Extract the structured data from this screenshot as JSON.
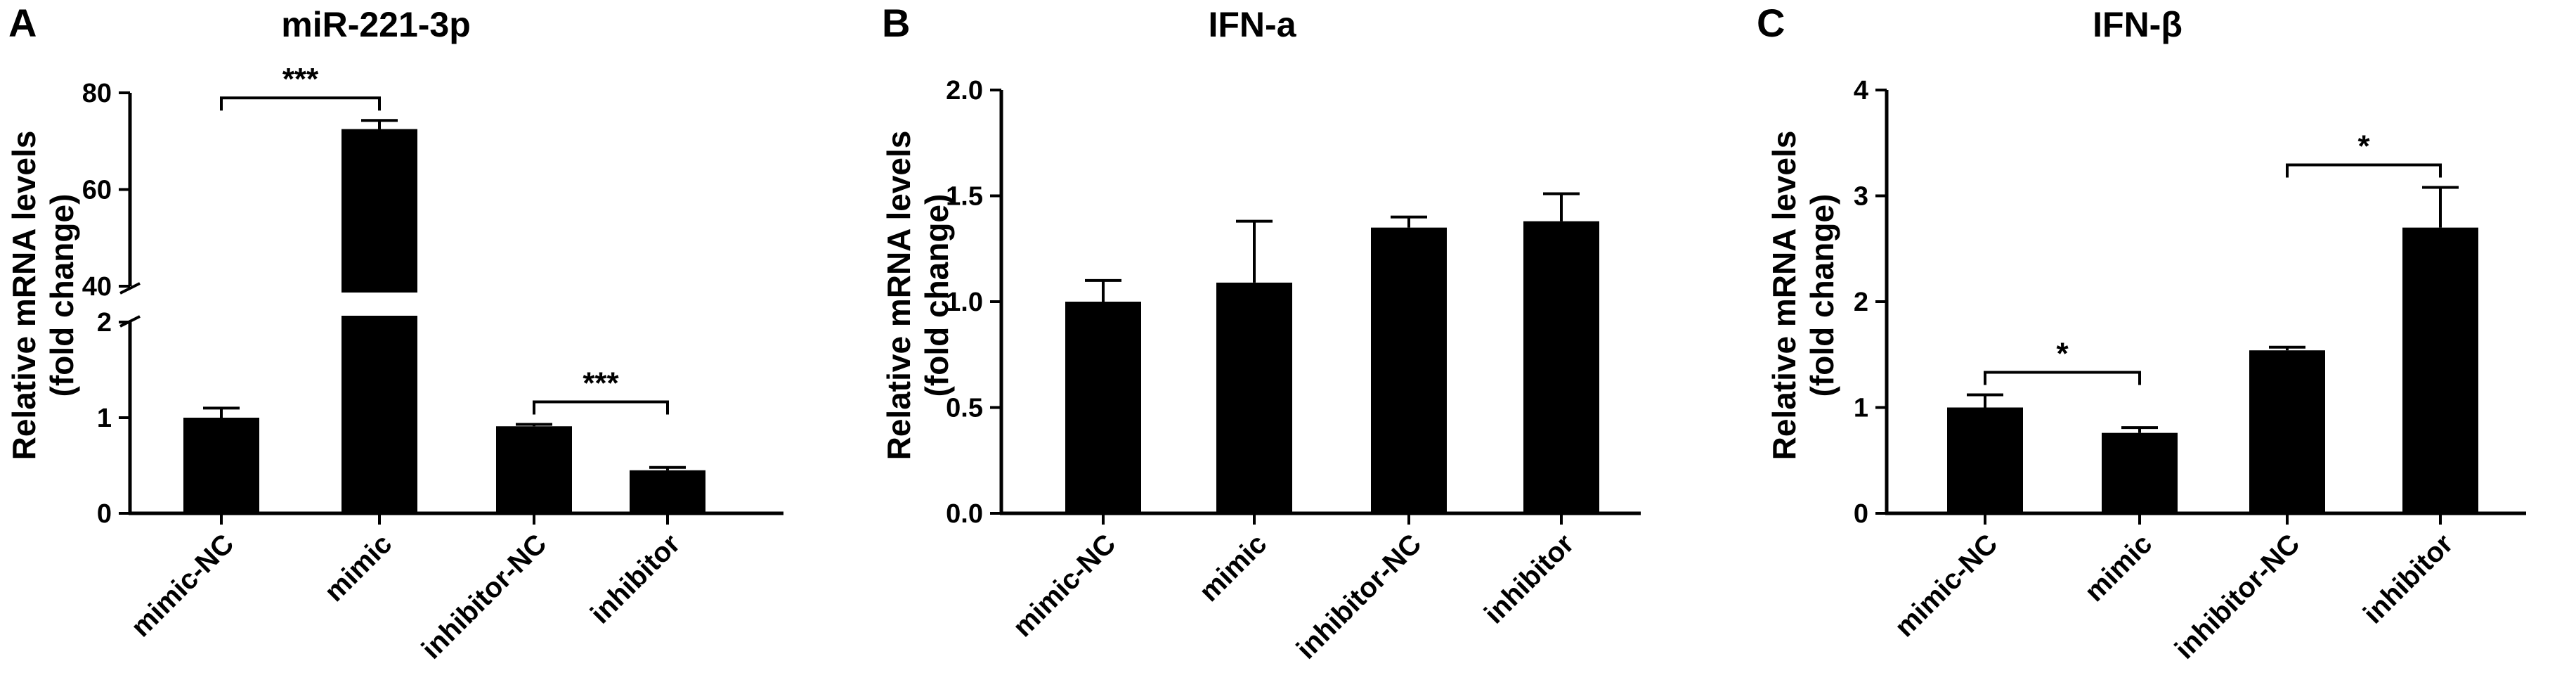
{
  "panels": [
    {
      "letter": "A",
      "title": "miR-221-3p"
    },
    {
      "letter": "B",
      "title": "IFN-a"
    },
    {
      "letter": "C",
      "title": "IFN-β"
    }
  ],
  "chart_data": [
    {
      "type": "bar",
      "panel": "A",
      "title": "miR-221-3p",
      "xlabel": "",
      "ylabel": "Relative mRNA levels\n(fold change)",
      "broken_axis": {
        "lower_range": [
          0,
          2
        ],
        "upper_range": [
          40,
          80
        ]
      },
      "categories": [
        "mimic-NC",
        "mimic",
        "inhibitor-NC",
        "inhibitor"
      ],
      "values": [
        1.0,
        72.5,
        0.91,
        0.45
      ],
      "errors": [
        0.1,
        1.8,
        0.02,
        0.03
      ],
      "ticks_lower": [
        "0",
        "1",
        "2"
      ],
      "ticks_upper": [
        "40",
        "60",
        "80"
      ],
      "significance": [
        {
          "from": 0,
          "to": 1,
          "label": "***"
        },
        {
          "from": 2,
          "to": 3,
          "label": "***"
        }
      ],
      "bar_color": "#000000"
    },
    {
      "type": "bar",
      "panel": "B",
      "title": "IFN-a",
      "xlabel": "",
      "ylabel": "Relative mRNA levels\n(fold change)",
      "ylim": [
        0,
        2.0
      ],
      "yticks": [
        "0.0",
        "0.5",
        "1.0",
        "1.5",
        "2.0"
      ],
      "categories": [
        "mimic-NC",
        "mimic",
        "inhibitor-NC",
        "inhibitor"
      ],
      "values": [
        1.0,
        1.09,
        1.35,
        1.38
      ],
      "errors": [
        0.1,
        0.29,
        0.05,
        0.13
      ],
      "significance": [],
      "bar_color": "#000000"
    },
    {
      "type": "bar",
      "panel": "C",
      "title": "IFN-β",
      "xlabel": "",
      "ylabel": "Relative mRNA levels\n(fold change)",
      "ylim": [
        0,
        4
      ],
      "yticks": [
        "0",
        "1",
        "2",
        "3",
        "4"
      ],
      "categories": [
        "mimic-NC",
        "mimic",
        "inhibitor-NC",
        "inhibitor"
      ],
      "values": [
        1.0,
        0.76,
        1.54,
        2.7
      ],
      "errors": [
        0.12,
        0.05,
        0.03,
        0.38
      ],
      "significance": [
        {
          "from": 0,
          "to": 1,
          "label": "*"
        },
        {
          "from": 2,
          "to": 3,
          "label": "*"
        }
      ],
      "bar_color": "#000000"
    }
  ]
}
